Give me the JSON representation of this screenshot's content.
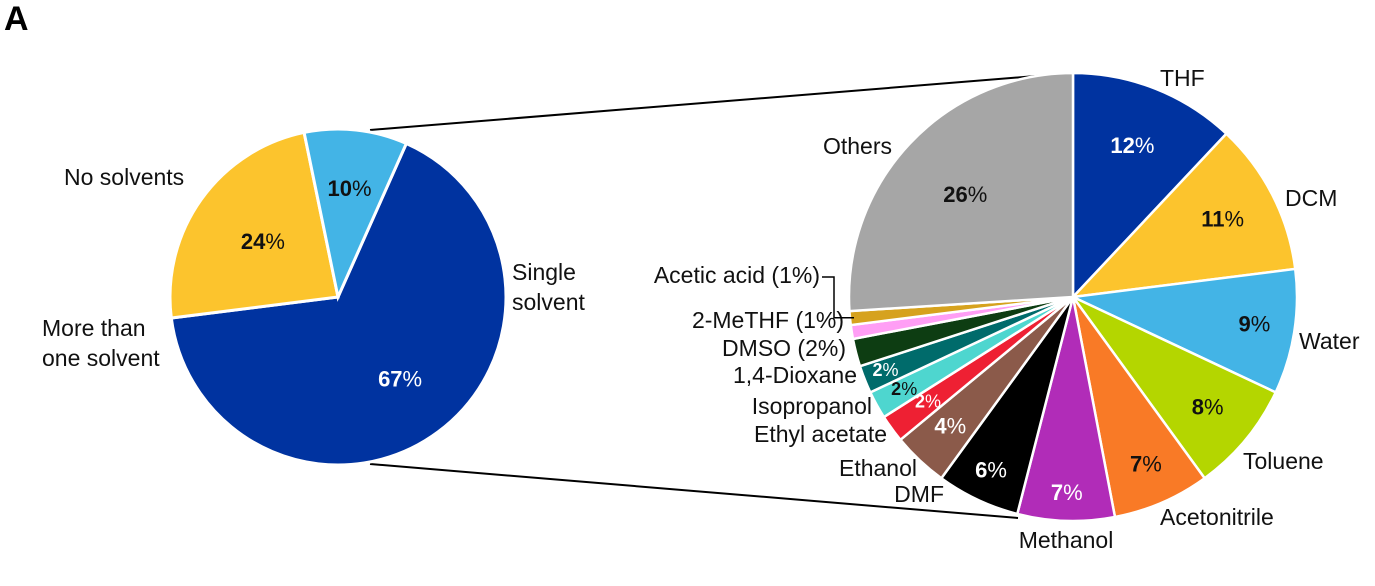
{
  "figure": {
    "panel_letter": "A"
  },
  "chart_data": [
    {
      "type": "pie",
      "title": "",
      "slices": [
        {
          "label": "Single solvent",
          "value": 67,
          "display": "67",
          "color": "#0033a0",
          "text_color": "#ffffff"
        },
        {
          "label": "More than one solvent",
          "value": 24,
          "display": "24",
          "color": "#fcc42d",
          "text_color": "#111111"
        },
        {
          "label": "No solvents",
          "value": 10,
          "display": "10",
          "color": "#43b4e6",
          "text_color": "#111111"
        }
      ]
    },
    {
      "type": "pie",
      "title": "",
      "slices": [
        {
          "label": "THF",
          "value": 12,
          "display": "12",
          "color": "#0033a0",
          "text_color": "#ffffff"
        },
        {
          "label": "DCM",
          "value": 11,
          "display": "11",
          "color": "#fcc42d",
          "text_color": "#111111"
        },
        {
          "label": "Water",
          "value": 9,
          "display": "9",
          "color": "#43b4e6",
          "text_color": "#111111"
        },
        {
          "label": "Toluene",
          "value": 8,
          "display": "8",
          "color": "#b4d600",
          "text_color": "#111111"
        },
        {
          "label": "Acetonitrile",
          "value": 7,
          "display": "7",
          "color": "#f97a26",
          "text_color": "#111111"
        },
        {
          "label": "Methanol",
          "value": 7,
          "display": "7",
          "color": "#b12cb8",
          "text_color": "#ffffff"
        },
        {
          "label": "DMF",
          "value": 6,
          "display": "6",
          "color": "#000000",
          "text_color": "#ffffff"
        },
        {
          "label": "Ethanol",
          "value": 4,
          "display": "4",
          "color": "#8b5a4a",
          "text_color": "#ffffff"
        },
        {
          "label": "Ethyl acetate",
          "value": 2,
          "display": "2",
          "color": "#ee2033",
          "text_color": "#ffffff"
        },
        {
          "label": "Isopropanol",
          "value": 2,
          "display": "2",
          "color": "#4ed6cf",
          "text_color": "#111111"
        },
        {
          "label": "1,4-Dioxane",
          "value": 2,
          "display": "2",
          "color": "#006b6b",
          "text_color": "#ffffff"
        },
        {
          "label": "DMSO (2%)",
          "value": 2,
          "display": "",
          "color": "#0d3d12",
          "text_color": "#ffffff"
        },
        {
          "label": "2-MeTHF (1%)",
          "value": 1,
          "display": "",
          "color": "#ff9ef5",
          "text_color": "#111111"
        },
        {
          "label": "Acetic acid (1%)",
          "value": 1,
          "display": "",
          "color": "#d6a21e",
          "text_color": "#111111"
        },
        {
          "label": "Others",
          "value": 26,
          "display": "26",
          "color": "#a6a6a6",
          "text_color": "#111111"
        }
      ]
    }
  ]
}
